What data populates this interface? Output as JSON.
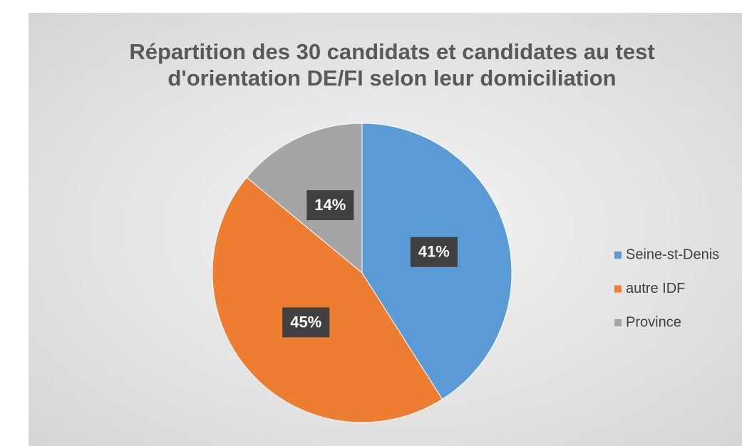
{
  "chart_data": {
    "type": "pie",
    "title": "Répartition des 30 candidats et candidates au test",
    "subtitle": "d'orientation DE/FI selon leur domiciliation",
    "categories": [
      "Seine-st-Denis",
      "autre IDF",
      "Province"
    ],
    "values": [
      41,
      45,
      14
    ],
    "value_labels": [
      "41%",
      "45%",
      "14%"
    ],
    "colors": [
      "#5b9bd5",
      "#ed7d31",
      "#a5a5a5"
    ],
    "legend": "right"
  }
}
